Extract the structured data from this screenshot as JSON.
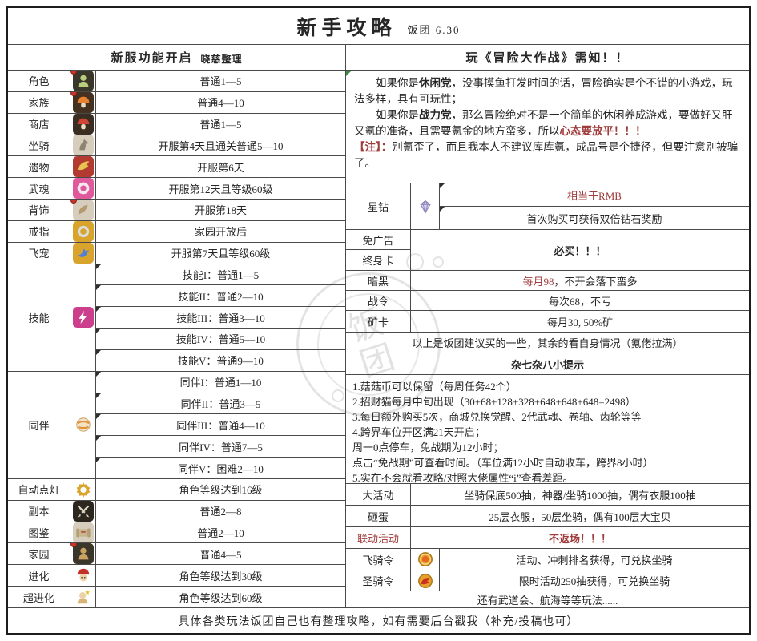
{
  "title": {
    "main": "新手攻略",
    "sub": "饭团 6.30"
  },
  "colors": {
    "red": "#a03c3c",
    "border": "#4a4a4a",
    "text": "#262626",
    "marker_green": "#3f8a46"
  },
  "footer": {
    "text": "具体各类玩法饭团自己也有整理攻略，如有需要后台戳我（补充/投稿也可）"
  },
  "left": {
    "header": "新服功能开启",
    "header_sub": "晓慈整理",
    "rows": [
      {
        "label": "角色",
        "icon": {
          "name": "role-icon",
          "shape": "person",
          "bg": "#3a372a",
          "fg": "#b9cd7e",
          "dot": true
        },
        "value": "普通1—5"
      },
      {
        "label": "家族",
        "icon": {
          "name": "family-icon",
          "shape": "mushroom",
          "bg": "#45311f",
          "fg": "#e8822e",
          "dot": true
        },
        "value": "普通4—10"
      },
      {
        "label": "商店",
        "icon": {
          "name": "shop-icon",
          "shape": "mushroom",
          "bg": "#3a2d22",
          "fg": "#d14434",
          "dot": false
        },
        "value": "普通1—5"
      },
      {
        "label": "坐骑",
        "icon": {
          "name": "mount-icon",
          "shape": "horse",
          "bg": "#d7cdbc",
          "fg": "#8d8373",
          "dot": false
        },
        "value": "开服第4天且通关普通5—10"
      },
      {
        "label": "遗物",
        "icon": {
          "name": "relic-icon",
          "shape": "wing",
          "bg": "#b23a30",
          "fg": "#e9c34f",
          "dot": false
        },
        "value": "开服第6天"
      },
      {
        "label": "武魂",
        "icon": {
          "name": "soul-icon",
          "shape": "orb",
          "bg": "#e05a9b",
          "fg": "#f7e9f2",
          "dot": false
        },
        "value": "开服第12天且等级60级"
      },
      {
        "label": "背饰",
        "icon": {
          "name": "back-accessory-icon",
          "shape": "fan",
          "bg": "#d7cdbc",
          "fg": "#b39b6f",
          "dot": true
        },
        "value": "开服第18天"
      },
      {
        "label": "戒指",
        "icon": {
          "name": "ring-icon",
          "shape": "ring",
          "bg": "#d9a42c",
          "fg": "#d9dde2",
          "dot": false
        },
        "value": "家园开放后"
      },
      {
        "label": "飞宠",
        "icon": {
          "name": "flying-pet-icon",
          "shape": "bird",
          "bg": "#d9a42c",
          "fg": "#4f7fd9",
          "dot": false
        },
        "value": "开服第7天且等级60级"
      },
      {
        "label": "技能",
        "icon": {
          "name": "skill-icon",
          "shape": "bolt",
          "bg": "#cb3f8d",
          "fg": "#ffffff",
          "dot": false
        },
        "subrows": [
          "技能I：普通1—5",
          "技能II：普通2—10",
          "技能III：普通3—10",
          "技能IV：普通5—10",
          "技能V：普通9—10"
        ]
      },
      {
        "label": "同伴",
        "icon": {
          "name": "companion-icon",
          "shape": "ball",
          "bg": "transparent",
          "fg": "#f2e3c6",
          "dot": false
        },
        "subrows": [
          "同伴I：普通1—10",
          "同伴II：普通3—5",
          "同伴III：普通4—10",
          "同伴IV：普通7—5",
          "同伴V：困难2—10"
        ]
      },
      {
        "label": "自动点灯",
        "icon": {
          "name": "auto-lamp-icon",
          "shape": "gear",
          "bg": "transparent",
          "fg": "#d9a42c",
          "dot": false
        },
        "value": "角色等级达到16级"
      },
      {
        "label": "副本",
        "icon": {
          "name": "dungeon-icon",
          "shape": "swords",
          "bg": "#2c271e",
          "fg": "#ded6c2",
          "dot": false
        },
        "value": "普通2—8"
      },
      {
        "label": "图鉴",
        "icon": {
          "name": "codex-icon",
          "shape": "scroll",
          "bg": "#d7cdbc",
          "fg": "#c9b68a",
          "dot": false
        },
        "value": "普通2—10"
      },
      {
        "label": "家园",
        "icon": {
          "name": "home-icon",
          "shape": "person",
          "bg": "#3a372a",
          "fg": "#caa260",
          "dot": true
        },
        "value": "普通4—5"
      },
      {
        "label": "进化",
        "icon": {
          "name": "evolution-icon",
          "shape": "shroomchar",
          "bg": "transparent",
          "fg": "#c23028",
          "dot": false
        },
        "value": "角色等级达到30级"
      },
      {
        "label": "超进化",
        "icon": {
          "name": "super-evolution-icon",
          "shape": "starchar",
          "bg": "transparent",
          "fg": "#ecd2a8",
          "dot": false
        },
        "value": "角色等级达到60级"
      }
    ]
  },
  "right": {
    "header": "玩《冒险大作战》需知！！",
    "intro_paragraphs": [
      [
        {
          "t": "　　如果你是"
        },
        {
          "t": "休闲党",
          "b": true
        },
        {
          "t": "，没事摸鱼打发时间的话，冒险确实是个不错的小游戏，玩法多样，具有可玩性；"
        }
      ],
      [
        {
          "t": "　　如果你是"
        },
        {
          "t": "战力党",
          "b": true
        },
        {
          "t": "，那么冒险绝对不是一个简单的休闲养成游戏，要做好又肝又氪的准备，且需要氪金的地方蛮多，所以"
        },
        {
          "t": "心态要放平！！！",
          "red": true,
          "b": true
        }
      ],
      [
        {
          "t": "【注】：",
          "red": true,
          "b": true
        },
        {
          "t": "别氪歪了，而且我本人不建议库库氪，成品号是个捷径，但要注意别被骗了。"
        }
      ]
    ],
    "star_diamond": {
      "label": "星钻",
      "icon": {
        "name": "star-diamond-icon",
        "shape": "diamond",
        "bg": "transparent",
        "fg": "#d8d2ee",
        "dot": false
      },
      "values": [
        [
          {
            "t": "相当于RMB",
            "red": true
          }
        ],
        [
          {
            "t": "首次购买可获得双倍钻石奖励"
          }
        ]
      ]
    },
    "ad_free_label": "免广告",
    "lifetime_card_label": "终身卡",
    "must_buy": "必买！！！",
    "pass_rows": [
      {
        "label": "暗黑",
        "segments": [
          {
            "t": "每月98",
            "red": true
          },
          {
            "t": "，不开会落下蛮多"
          }
        ]
      },
      {
        "label": "战令",
        "segments": [
          {
            "t": "每次68，不亏"
          }
        ]
      },
      {
        "label": "矿卡",
        "segments": [
          {
            "t": "每月30, 50%矿"
          }
        ]
      }
    ],
    "advice_line": "以上是饭团建议买的一些，其余的看自身情况（氪佬拉满）",
    "tips_header": "杂七杂八小提示",
    "tips_lines": [
      "1.菇菇币可以保留（每周任务42个）",
      "2.招财猫每月中旬出现（30+68+128+328+648+648+648=2498）",
      "3.每日额外购买5次，商城兑换觉醒、2代武魂、卷轴、齿轮等等",
      "4.跨界车位开区满21天开启；",
      "周一0点停车，免战期为12小时；",
      "点击“免战期”可查看时间。（车位满12小时自动收车，跨界8小时）",
      "5.实在不会就看攻略/对照大佬属性“i”查看差距。"
    ],
    "activity_rows": [
      {
        "label": "大活动",
        "labelRed": false,
        "segments": [
          {
            "t": "坐骑保底500抽，神器/坐骑1000抽，偶有衣服100抽"
          }
        ]
      },
      {
        "label": "砸蛋",
        "labelRed": false,
        "segments": [
          {
            "t": "25层衣服，50层坐骑，偶有100层大宝贝"
          }
        ]
      },
      {
        "label": "联动活动",
        "labelRed": true,
        "segments": [
          {
            "t": "不返场！！！",
            "red": true,
            "b": true
          }
        ]
      }
    ],
    "token_rows": [
      {
        "label": "飞骑令",
        "icon": {
          "name": "flying-mount-token-icon",
          "shape": "badgering",
          "bg": "transparent",
          "fg": "#e8a02a",
          "dot": false
        },
        "segments": [
          {
            "t": "活动、冲刺排名获得，可兑换坐骑"
          }
        ]
      },
      {
        "label": "圣骑令",
        "icon": {
          "name": "holy-mount-token-icon",
          "shape": "badgewing",
          "bg": "transparent",
          "fg": "#c83020",
          "dot": false
        },
        "segments": [
          {
            "t": "限时活动250抽获得，可兑换坐骑"
          }
        ]
      }
    ],
    "more_line": "还有武道会、航海等等玩法......"
  },
  "watermark": {
    "text": "饭团"
  }
}
